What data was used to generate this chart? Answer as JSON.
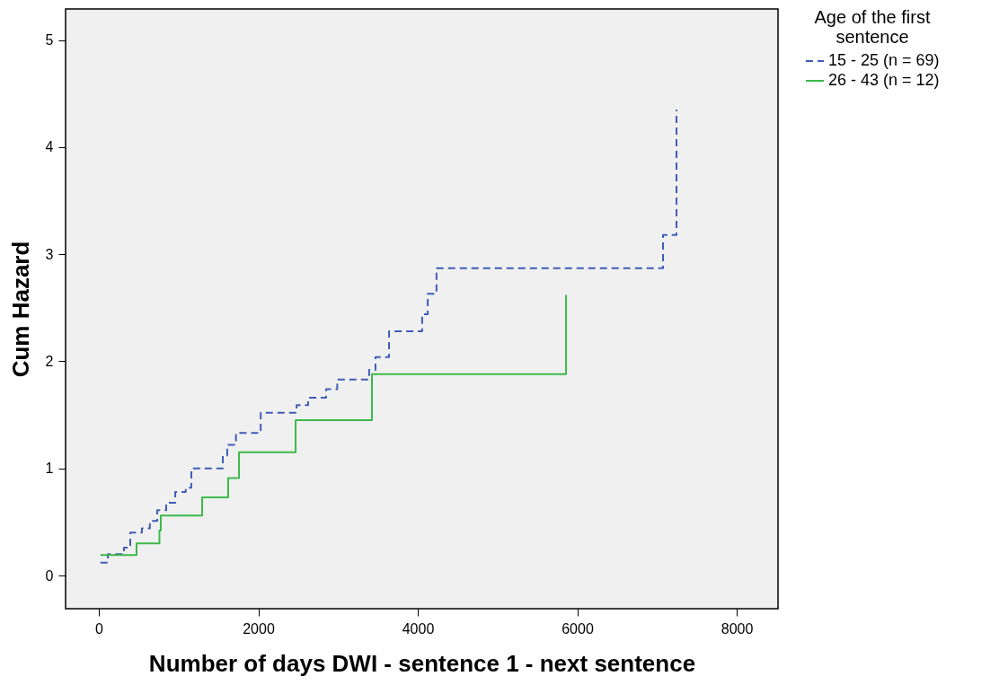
{
  "chart_data": {
    "type": "step",
    "xlabel": "Number of days DWI - sentence 1 - next sentence",
    "ylabel": "Cum Hazard",
    "legend_title": "Age of the first sentence",
    "legend": "top right",
    "grid": false,
    "xlim": [
      -417,
      8518
    ],
    "xticks": [
      0,
      2000,
      4000,
      6000,
      8000
    ],
    "ylim": [
      -0.31,
      5.29
    ],
    "yticks": [
      0,
      1,
      2,
      3,
      4,
      5
    ],
    "series": [
      {
        "name": "15 - 25 (n = 69)",
        "color": "#3f5cb8",
        "line_style": "dashed",
        "x": [
          20,
          113,
          315,
          394,
          540,
          640,
          732,
          845,
          958,
          1090,
          1160,
          1555,
          1610,
          1720,
          2030,
          2480,
          2625,
          2850,
          2990,
          3390,
          3470,
          3640,
          4055,
          4125,
          4235,
          7076,
          7245
        ],
        "values": [
          0.12,
          0.2,
          0.26,
          0.4,
          0.44,
          0.51,
          0.61,
          0.68,
          0.78,
          0.82,
          1.0,
          1.12,
          1.22,
          1.33,
          1.52,
          1.59,
          1.66,
          1.74,
          1.83,
          1.92,
          2.04,
          2.28,
          2.44,
          2.63,
          2.87,
          3.18,
          4.35
        ]
      },
      {
        "name": "26 - 43 (n = 12)",
        "color": "#3cb94a",
        "line_style": "solid",
        "x": [
          20,
          473,
          760,
          777,
          1296,
          1622,
          1758,
          2468,
          3425,
          5860
        ],
        "values": [
          0.19,
          0.3,
          0.42,
          0.56,
          0.73,
          0.91,
          1.15,
          1.45,
          1.88,
          2.62
        ]
      }
    ]
  }
}
